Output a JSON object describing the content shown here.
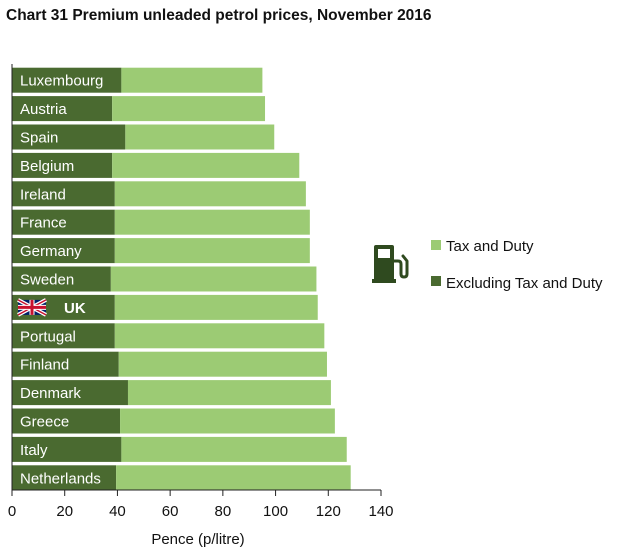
{
  "colors": {
    "tax": "#9ccb74",
    "excl": "#4a6a30",
    "axis": "#222222",
    "text": "#111111",
    "label_on_bar": "#ffffff"
  },
  "chart_data": {
    "type": "bar",
    "orientation": "horizontal",
    "stacked": true,
    "title": "Chart 31 Premium unleaded petrol prices, November 2016",
    "xlabel": "Pence (p/litre)",
    "ylabel": "",
    "xlim": [
      0,
      140
    ],
    "xticks": [
      0,
      20,
      40,
      60,
      80,
      100,
      120,
      140
    ],
    "grid": false,
    "legend_position": "right",
    "categories": [
      "Luxembourg",
      "Austria",
      "Spain",
      "Belgium",
      "Ireland",
      "France",
      "Germany",
      "Sweden",
      "UK",
      "Portugal",
      "Finland",
      "Denmark",
      "Greece",
      "Italy",
      "Netherlands"
    ],
    "highlight": {
      "category": "UK",
      "icon": "uk-flag-icon"
    },
    "series": [
      {
        "name": "Excluding Tax and Duty",
        "color": "#4a6a30",
        "values": [
          41.5,
          38.0,
          43.0,
          38.0,
          39.0,
          39.0,
          39.0,
          37.5,
          39.0,
          39.0,
          40.5,
          44.0,
          41.0,
          41.5,
          39.5
        ]
      },
      {
        "name": "Tax and Duty",
        "color": "#9ccb74",
        "values": [
          53.5,
          58.0,
          56.5,
          71.0,
          72.5,
          74.0,
          74.0,
          78.0,
          77.0,
          79.5,
          79.0,
          77.0,
          81.5,
          85.5,
          89.0
        ]
      }
    ],
    "legend": [
      {
        "name": "Tax and Duty",
        "color": "#9ccb74"
      },
      {
        "name": "Excluding Tax and Duty",
        "color": "#4a6a30"
      }
    ],
    "legend_icon": "fuel-pump-icon"
  }
}
